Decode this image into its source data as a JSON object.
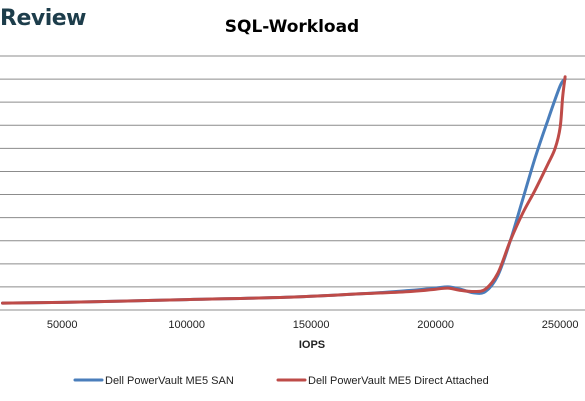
{
  "brand": "Review",
  "chart_data": {
    "type": "line",
    "title": "SQL-Workload",
    "xlabel": "IOPS",
    "ylabel": "",
    "xlim": [
      25000,
      260000
    ],
    "ylim": [
      0,
      11
    ],
    "xticks": [
      50000,
      100000,
      150000,
      200000,
      250000
    ],
    "xtick_labels": [
      "50000",
      "100000",
      "150000",
      "200000",
      "250000"
    ],
    "yticks": [
      1,
      2,
      3,
      4,
      5,
      6,
      7,
      8,
      9,
      10,
      11
    ],
    "ytick_labels": [],
    "grid": true,
    "legend_position": "bottom",
    "series": [
      {
        "name": "Dell PowerVault ME5 SAN",
        "color": "#4a7ebb",
        "x": [
          26000,
          60000,
          100000,
          140000,
          170000,
          190000,
          200000,
          205000,
          210000,
          215000,
          220000,
          225000,
          230000,
          235000,
          240000,
          245000,
          250000,
          252000
        ],
        "y": [
          0.3,
          0.35,
          0.45,
          0.55,
          0.7,
          0.85,
          0.95,
          1.0,
          0.9,
          0.75,
          0.8,
          1.5,
          3.0,
          4.8,
          6.6,
          8.2,
          9.7,
          10.0
        ]
      },
      {
        "name": "Dell PowerVault ME5 Direct Attached",
        "color": "#be4b48",
        "x": [
          26000,
          60000,
          100000,
          140000,
          170000,
          190000,
          200000,
          205000,
          210000,
          215000,
          220000,
          225000,
          230000,
          235000,
          240000,
          245000,
          248000,
          250000,
          251000,
          252000
        ],
        "y": [
          0.3,
          0.35,
          0.45,
          0.55,
          0.7,
          0.8,
          0.9,
          0.95,
          0.85,
          0.8,
          0.9,
          1.6,
          3.0,
          4.2,
          5.2,
          6.3,
          7.0,
          7.9,
          9.2,
          10.1
        ]
      }
    ]
  }
}
